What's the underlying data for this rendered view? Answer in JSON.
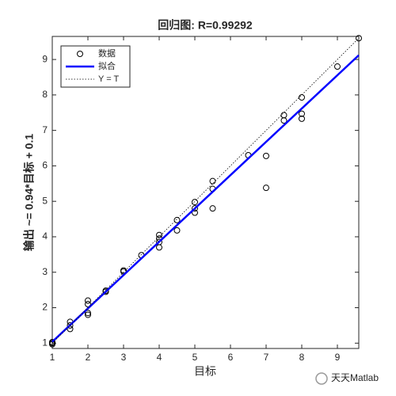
{
  "chart_data": {
    "type": "scatter",
    "title": "回归图: R=0.99292",
    "x_label": "目标",
    "y_label": "输出 ~= 0.94*目标 + 0.1",
    "xlim": [
      1,
      9.6
    ],
    "ylim": [
      0.85,
      9.65
    ],
    "xticks": [
      1,
      2,
      3,
      4,
      5,
      6,
      7,
      8,
      9
    ],
    "yticks": [
      1,
      2,
      3,
      4,
      5,
      6,
      7,
      8,
      9
    ],
    "legend": "upper left",
    "series": [
      {
        "name": "数据",
        "style": "marker",
        "color": "#000000",
        "x": [
          1,
          1,
          1,
          1.5,
          1.5,
          1.5,
          2,
          2,
          2,
          2,
          2.5,
          2.5,
          3,
          3,
          3.5,
          4,
          4,
          4,
          4,
          4.5,
          4.5,
          5,
          5,
          5,
          5.5,
          5.5,
          5.5,
          6.5,
          7,
          7,
          7.5,
          7.5,
          8,
          8,
          8,
          9,
          9.6
        ],
        "values": [
          1.0,
          0.97,
          1.03,
          1.4,
          1.5,
          1.6,
          1.8,
          1.85,
          2.1,
          2.2,
          2.45,
          2.48,
          3.02,
          3.05,
          3.48,
          3.7,
          3.85,
          3.95,
          4.05,
          4.18,
          4.47,
          4.68,
          4.8,
          4.98,
          4.8,
          5.35,
          5.57,
          6.3,
          5.38,
          6.28,
          7.28,
          7.43,
          7.33,
          7.47,
          7.93,
          8.8,
          9.6
        ]
      },
      {
        "name": "拟合",
        "style": "line",
        "color": "#0000ff",
        "x": [
          1,
          9.6
        ],
        "values": [
          1.04,
          9.12
        ]
      },
      {
        "name": "Y = T",
        "style": "dotted",
        "color": "#000000",
        "x": [
          1,
          9.6
        ],
        "values": [
          1,
          9.6
        ]
      }
    ]
  },
  "watermark": "天天Matlab"
}
